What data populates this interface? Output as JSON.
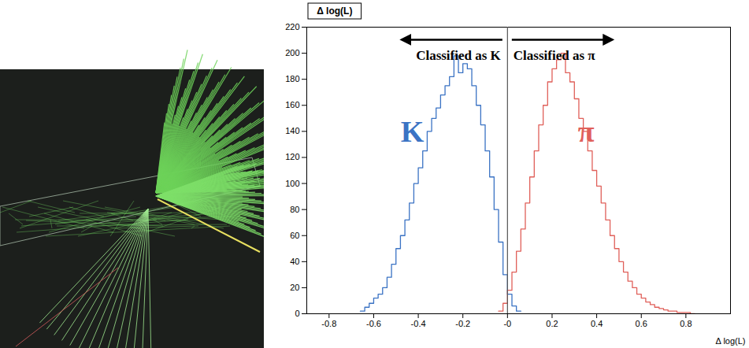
{
  "chart_data": {
    "type": "histogram",
    "title": "Δ log(L)",
    "x_label": "Δ log(L)",
    "xlim": [
      -0.9,
      1.0
    ],
    "xticks": [
      -0.8,
      -0.6,
      -0.4,
      -0.2,
      {
        "value": 0,
        "label": "-0"
      },
      0.2,
      0.4,
      0.6,
      0.8
    ],
    "ylim": [
      0,
      220
    ],
    "yticks": [
      0,
      20,
      40,
      60,
      80,
      100,
      120,
      140,
      160,
      180,
      200,
      220
    ],
    "cut": 0,
    "annotations": [
      {
        "text": "Classified as K",
        "side": "left"
      },
      {
        "text": "Classified as π",
        "side": "right"
      }
    ],
    "series": [
      {
        "name": "K",
        "color": "#3b73c4",
        "bins": [
          -0.66,
          -0.64,
          -0.62,
          -0.6,
          -0.58,
          -0.56,
          -0.54,
          -0.52,
          -0.5,
          -0.48,
          -0.46,
          -0.44,
          -0.42,
          -0.4,
          -0.38,
          -0.36,
          -0.34,
          -0.32,
          -0.3,
          -0.28,
          -0.26,
          -0.24,
          -0.22,
          -0.2,
          -0.18,
          -0.16,
          -0.14,
          -0.12,
          -0.1,
          -0.08,
          -0.06,
          -0.04,
          -0.02,
          0.0,
          0.02,
          0.04,
          0.06
        ],
        "values": [
          2,
          5,
          8,
          12,
          15,
          20,
          28,
          38,
          50,
          60,
          72,
          85,
          100,
          112,
          125,
          140,
          150,
          158,
          168,
          175,
          182,
          198,
          185,
          192,
          188,
          175,
          160,
          145,
          125,
          105,
          80,
          55,
          30,
          15,
          6,
          2
        ]
      },
      {
        "name": "π",
        "color": "#e0605a",
        "bins": [
          -0.04,
          -0.02,
          0.0,
          0.02,
          0.04,
          0.06,
          0.08,
          0.1,
          0.12,
          0.14,
          0.16,
          0.18,
          0.2,
          0.22,
          0.24,
          0.26,
          0.28,
          0.3,
          0.32,
          0.34,
          0.36,
          0.38,
          0.4,
          0.42,
          0.44,
          0.46,
          0.48,
          0.5,
          0.52,
          0.54,
          0.56,
          0.58,
          0.6,
          0.62,
          0.64,
          0.66,
          0.68,
          0.7,
          0.72,
          0.74,
          0.76,
          0.78,
          0.8,
          0.82,
          0.84
        ],
        "values": [
          2,
          8,
          18,
          32,
          48,
          65,
          85,
          105,
          125,
          145,
          160,
          178,
          188,
          195,
          200,
          185,
          178,
          165,
          150,
          140,
          125,
          110,
          98,
          85,
          72,
          60,
          50,
          40,
          32,
          25,
          20,
          15,
          12,
          9,
          7,
          5,
          4,
          3,
          2,
          2,
          1,
          1,
          1,
          0
        ]
      }
    ]
  }
}
